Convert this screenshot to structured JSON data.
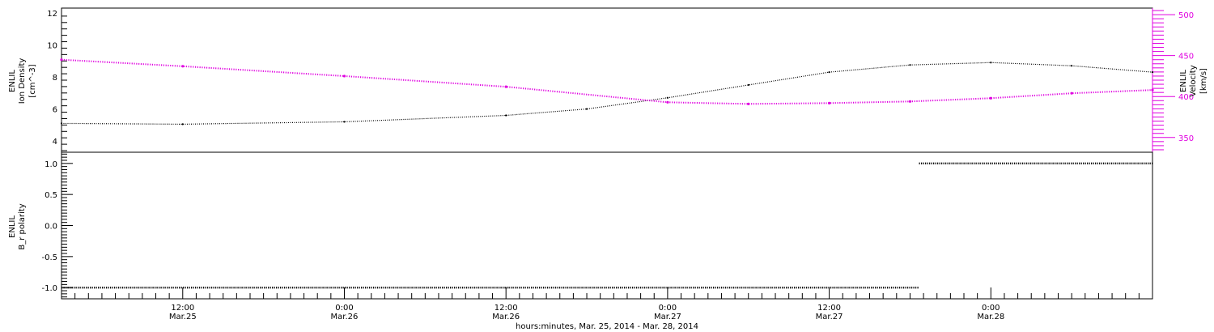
{
  "chart_data": [
    {
      "type": "line",
      "panel": "top",
      "x_range": [
        "2014-03-25T03:00",
        "2014-03-28T12:00"
      ],
      "left_axis": {
        "label_lines": [
          "ENLIL",
          "Ion Density",
          "[cm^-3]"
        ],
        "ylim": [
          3.3,
          12.3
        ],
        "ticks": [
          4,
          6,
          8,
          10,
          12
        ],
        "color": "#000000"
      },
      "right_axis": {
        "label_lines": [
          "ENLIL",
          "Velocity",
          "[km/s]"
        ],
        "ylim": [
          332,
          508
        ],
        "ticks": [
          350,
          400,
          450,
          500
        ],
        "color": "#e000e0"
      },
      "series": [
        {
          "name": "ENLIL Ion Density",
          "axis": "left",
          "color": "#000000",
          "x": [
            "2014-03-25T03:00",
            "2014-03-25T12:00",
            "2014-03-26T00:00",
            "2014-03-26T12:00",
            "2014-03-26T18:00",
            "2014-03-27T00:00",
            "2014-03-27T06:00",
            "2014-03-27T12:00",
            "2014-03-27T18:00",
            "2014-03-28T00:00",
            "2014-03-28T06:00",
            "2014-03-28T12:00"
          ],
          "values": [
            5.1,
            5.05,
            5.2,
            5.6,
            6.0,
            6.7,
            7.5,
            8.3,
            8.75,
            8.9,
            8.7,
            8.3
          ]
        },
        {
          "name": "ENLIL Velocity",
          "axis": "right",
          "color": "#e000e0",
          "x": [
            "2014-03-25T03:00",
            "2014-03-25T12:00",
            "2014-03-26T00:00",
            "2014-03-26T12:00",
            "2014-03-27T00:00",
            "2014-03-27T06:00",
            "2014-03-27T12:00",
            "2014-03-27T18:00",
            "2014-03-28T00:00",
            "2014-03-28T06:00",
            "2014-03-28T12:00"
          ],
          "values": [
            445,
            437,
            425,
            412,
            393,
            391,
            392,
            394,
            398,
            404,
            408
          ]
        }
      ]
    },
    {
      "type": "scatter",
      "panel": "bottom",
      "x_range": [
        "2014-03-25T03:00",
        "2014-03-28T12:00"
      ],
      "left_axis": {
        "label_lines": [
          "ENLIL",
          "B_r polarity"
        ],
        "ylim": [
          -1.18,
          1.18
        ],
        "ticks": [
          -1.0,
          -0.5,
          0.0,
          0.5,
          1.0
        ],
        "tick_labels": [
          "-1.0",
          "-0.5",
          "0.0",
          "0.5",
          "1.0"
        ]
      },
      "series": [
        {
          "name": "ENLIL Br polarity",
          "color": "#000000",
          "segments": [
            {
              "from": "2014-03-25T03:00",
              "to": "2014-03-27T18:40",
              "value": -1.0
            },
            {
              "from": "2014-03-27T18:40",
              "to": "2014-03-28T12:00",
              "value": 1.0
            }
          ]
        }
      ],
      "x_ticks": [
        {
          "time": "2014-03-25T12:00",
          "label1": "12:00",
          "label2": "Mar.25"
        },
        {
          "time": "2014-03-26T00:00",
          "label1": "0:00",
          "label2": "Mar.26"
        },
        {
          "time": "2014-03-26T12:00",
          "label1": "12:00",
          "label2": "Mar.26"
        },
        {
          "time": "2014-03-27T00:00",
          "label1": "0:00",
          "label2": "Mar.27"
        },
        {
          "time": "2014-03-27T12:00",
          "label1": "12:00",
          "label2": "Mar.27"
        },
        {
          "time": "2014-03-28T00:00",
          "label1": "0:00",
          "label2": "Mar.28"
        }
      ],
      "xlabel": "hours:minutes, Mar. 25, 2014 - Mar. 28, 2014"
    }
  ]
}
